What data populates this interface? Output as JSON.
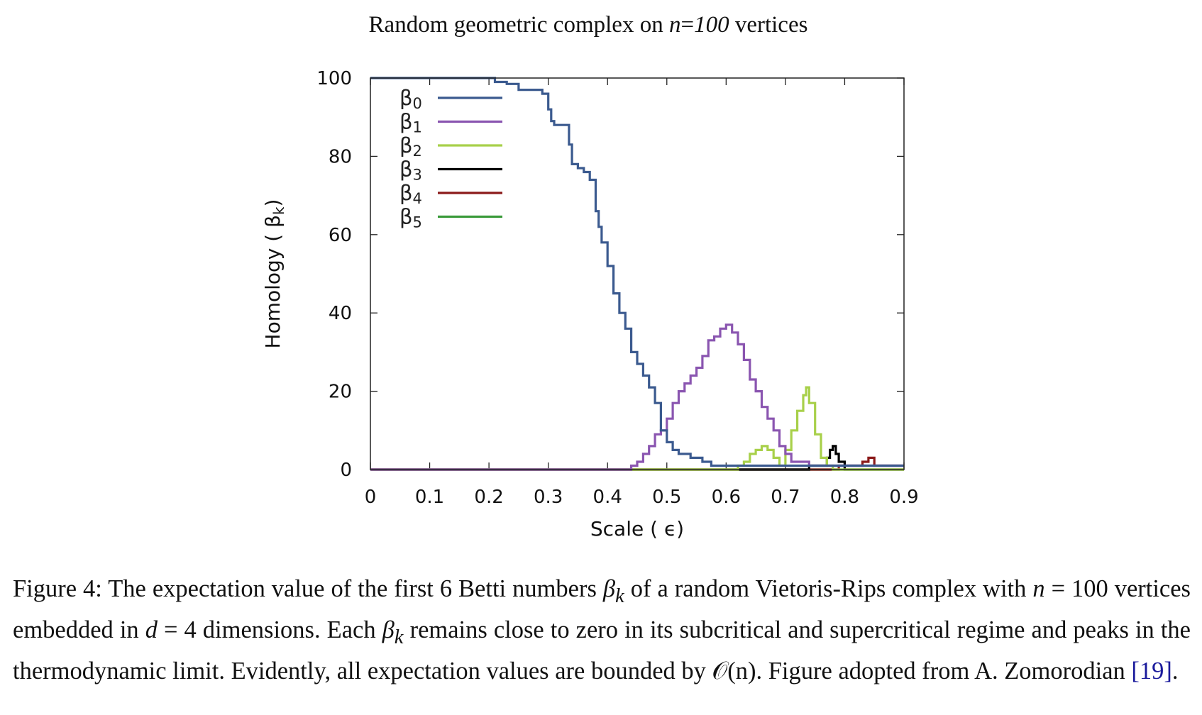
{
  "chart_data": {
    "type": "line",
    "title": "Random geometric complex on n=100 vertices",
    "title_parts": {
      "pre": "Random geometric complex on ",
      "var": "n",
      "eq": "=",
      "num": "100",
      "post": " vertices"
    },
    "xlabel": "Scale ( ϵ)",
    "ylabel": "Homology ( βk)",
    "ylabel_parts": {
      "pre": "Homology ( β",
      "sub": "k",
      "post": ")"
    },
    "xlim": [
      0,
      0.9
    ],
    "ylim": [
      0,
      100
    ],
    "xticks": [
      "0",
      "0.1",
      "0.2",
      "0.3",
      "0.4",
      "0.5",
      "0.6",
      "0.7",
      "0.8",
      "0.9"
    ],
    "yticks": [
      "0",
      "20",
      "40",
      "60",
      "80",
      "100"
    ],
    "grid": false,
    "legend_position": "top-left",
    "step": true,
    "series": [
      {
        "name": "β0",
        "color": "#3b5a8f",
        "x": [
          0,
          0.2,
          0.21,
          0.23,
          0.25,
          0.29,
          0.3,
          0.305,
          0.31,
          0.32,
          0.335,
          0.34,
          0.35,
          0.36,
          0.37,
          0.38,
          0.385,
          0.39,
          0.4,
          0.41,
          0.42,
          0.43,
          0.44,
          0.45,
          0.46,
          0.47,
          0.48,
          0.49,
          0.5,
          0.51,
          0.52,
          0.54,
          0.56,
          0.575,
          0.6,
          0.9
        ],
        "y": [
          100,
          100,
          99,
          98.5,
          97,
          96,
          92,
          89,
          88,
          88,
          83,
          78,
          77,
          76,
          74,
          66,
          62,
          58,
          52,
          45,
          40,
          36,
          30,
          27,
          24,
          21,
          17,
          10,
          7,
          5,
          4,
          3,
          2,
          1,
          1,
          1
        ]
      },
      {
        "name": "β1",
        "color": "#8a55b0",
        "x": [
          0,
          0.44,
          0.45,
          0.46,
          0.47,
          0.48,
          0.49,
          0.5,
          0.51,
          0.52,
          0.53,
          0.54,
          0.55,
          0.56,
          0.57,
          0.58,
          0.59,
          0.6,
          0.61,
          0.62,
          0.63,
          0.64,
          0.65,
          0.66,
          0.67,
          0.68,
          0.69,
          0.7,
          0.71,
          0.72,
          0.74,
          0.76,
          0.78,
          0.8,
          0.9
        ],
        "y": [
          0,
          1,
          2,
          4,
          6,
          9,
          10,
          13,
          17,
          20,
          22,
          24,
          26,
          29,
          33,
          34,
          36,
          37,
          35,
          32,
          28,
          23,
          20,
          16,
          13,
          10,
          6,
          4,
          2,
          2,
          1,
          1,
          1,
          1,
          1
        ]
      },
      {
        "name": "β2",
        "color": "#a8d04a",
        "x": [
          0,
          0.62,
          0.63,
          0.64,
          0.65,
          0.66,
          0.67,
          0.68,
          0.69,
          0.7,
          0.71,
          0.72,
          0.73,
          0.735,
          0.74,
          0.75,
          0.76,
          0.77,
          0.78,
          0.9
        ],
        "y": [
          0,
          1,
          2,
          4,
          5,
          6,
          5,
          3,
          1,
          5,
          10,
          15,
          19,
          21,
          17,
          9,
          3,
          1,
          0,
          0
        ]
      },
      {
        "name": "β3",
        "color": "#000000",
        "x": [
          0,
          0.74,
          0.76,
          0.77,
          0.775,
          0.78,
          0.785,
          0.79,
          0.8,
          0.9
        ],
        "y": [
          0,
          1,
          1,
          3,
          5,
          6,
          4,
          2,
          0,
          0
        ]
      },
      {
        "name": "β4",
        "color": "#8b1a1a",
        "x": [
          0,
          0.79,
          0.81,
          0.83,
          0.84,
          0.85,
          0.86,
          0.87,
          0.9
        ],
        "y": [
          0,
          1,
          1,
          2,
          3,
          1,
          1,
          1,
          1
        ]
      },
      {
        "name": "β5",
        "color": "#3a9a3a",
        "x": [
          0,
          0.9
        ],
        "y": [
          0,
          0
        ]
      }
    ]
  },
  "caption": {
    "fig_label": "Figure 4:",
    "text_a": " The expectation value of the first 6 Betti numbers ",
    "beta_a": "β",
    "sub_a": "k",
    "text_b": " of a random Vietoris-Rips complex with ",
    "n_var": "n",
    "eq_n": " = 100 vertices embedded in ",
    "d_var": "d",
    "eq_d": " = 4 dimensions. Each ",
    "beta_b": "β",
    "sub_b": "k",
    "text_c": " remains close to zero in its subcritical and supercritical regime and peaks in the thermodynamic limit. Evidently, all expectation values are bounded by ",
    "o_n": "𝒪(n)",
    "text_d": ". Figure adopted from A. Zomorodian ",
    "ref": "[19]",
    "text_e": "."
  }
}
